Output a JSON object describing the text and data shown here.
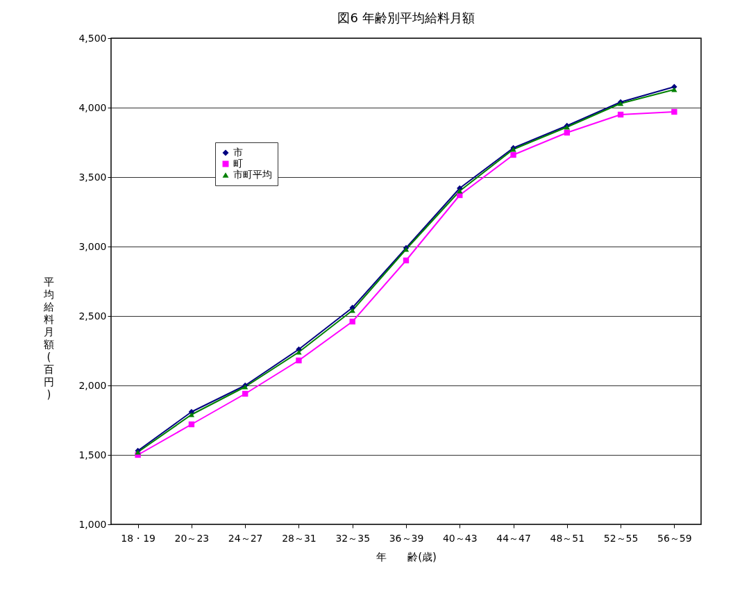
{
  "chart_data": {
    "type": "line",
    "title": "図6  年齢別平均給料月額",
    "xlabel": "年　　齢(歳)",
    "ylabel": "平均給料月額(百円)",
    "categories": [
      "18・19",
      "20～23",
      "24～27",
      "28～31",
      "32～35",
      "36～39",
      "40～43",
      "44～47",
      "48～51",
      "52～55",
      "56～59"
    ],
    "series": [
      {
        "name": "市",
        "color": "#000080",
        "marker": "diamond",
        "values": [
          1530,
          1810,
          2000,
          2260,
          2560,
          2990,
          3420,
          3710,
          3870,
          4040,
          4150
        ]
      },
      {
        "name": "町",
        "color": "#ff00ff",
        "marker": "square",
        "values": [
          1500,
          1720,
          1940,
          2180,
          2460,
          2900,
          3370,
          3660,
          3820,
          3950,
          3970
        ]
      },
      {
        "name": "市町平均",
        "color": "#008000",
        "marker": "triangle",
        "values": [
          1520,
          1790,
          1990,
          2240,
          2540,
          2980,
          3400,
          3700,
          3860,
          4030,
          4130
        ]
      }
    ],
    "ylim": [
      1000,
      4500
    ],
    "yticks": [
      {
        "value": 1000,
        "label": "1,000"
      },
      {
        "value": 1500,
        "label": "1,500"
      },
      {
        "value": 2000,
        "label": "2,000"
      },
      {
        "value": 2500,
        "label": "2,500"
      },
      {
        "value": 3000,
        "label": "3,000"
      },
      {
        "value": 3500,
        "label": "3,500"
      },
      {
        "value": 4000,
        "label": "4,000"
      },
      {
        "value": 4500,
        "label": "4,500"
      }
    ],
    "grid": "y",
    "legend": "top left"
  }
}
